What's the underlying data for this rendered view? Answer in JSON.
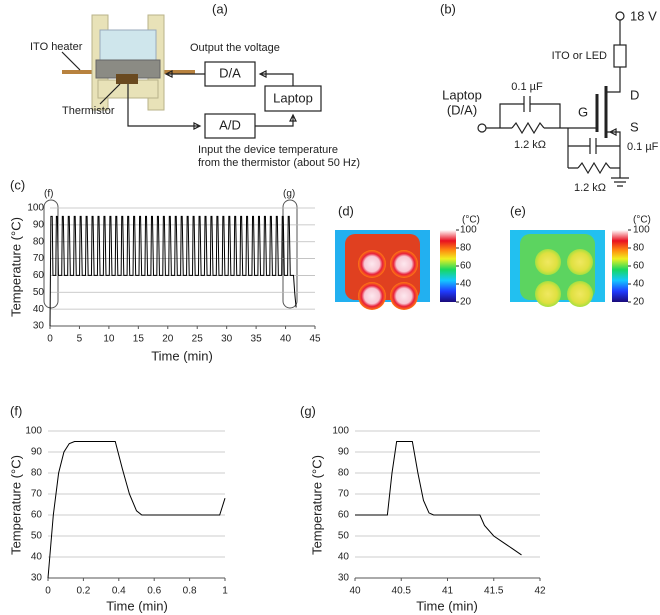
{
  "diagram_a": {
    "label": "(a)",
    "ito_heater": "ITO heater",
    "thermistor": "Thermistor",
    "output": "Output the voltage",
    "da": "D/A",
    "laptop": "Laptop",
    "ad": "A/D",
    "input_line1": "Input the device temperature",
    "input_line2": "from the thermistor (about 50 Hz)"
  },
  "circuit": {
    "label": "(b)",
    "supply": "18 V",
    "load": "ITO or LED",
    "drain": "D",
    "gate": "G",
    "source": "S",
    "input_line1": "Laptop",
    "input_line2": "(D/A)",
    "c1": "0.1 µF",
    "r1": "1.2 kΩ",
    "c2": "0.1 µF",
    "r2": "1.2 kΩ"
  },
  "thermal": [
    {
      "label": "(d)",
      "unit": "(°C)",
      "lim": [
        20,
        100
      ],
      "ticks": [
        20,
        40,
        60,
        80,
        100
      ]
    },
    {
      "label": "(e)",
      "unit": "(°C)",
      "lim": [
        20,
        100
      ],
      "ticks": [
        20,
        40,
        60,
        80,
        100
      ]
    }
  ],
  "chart_data": [
    {
      "type": "line",
      "label": "(c)",
      "xlabel": "Time (min)",
      "ylabel": "Temperature (°C)",
      "color": "#000000",
      "grid": true,
      "annotations": [
        "(f)",
        "(g)"
      ],
      "xlim": [
        0,
        45
      ],
      "xticks": [
        0,
        5,
        10,
        15,
        20,
        25,
        30,
        35,
        40,
        45
      ],
      "ylim": [
        30,
        100
      ],
      "yticks": [
        30,
        40,
        50,
        60,
        70,
        80,
        90,
        100
      ],
      "x": [
        0,
        0.15,
        0.38,
        0.5,
        0.98,
        1.08,
        1.25,
        1.43,
        1.99,
        2.09,
        2.26,
        2.44,
        3,
        3.1,
        3.27,
        3.45,
        4.01,
        4.11,
        4.28,
        4.46,
        5.02,
        5.12,
        5.29,
        5.47,
        6.03,
        6.13,
        6.3,
        6.48,
        7.04,
        7.14,
        7.31,
        7.49,
        8.05,
        8.15,
        8.32,
        8.5,
        9.06,
        9.16,
        9.33,
        9.51,
        10.07,
        10.17,
        10.34,
        10.52,
        11.07,
        11.17,
        11.34,
        11.52,
        12.08,
        12.18,
        12.35,
        12.53,
        13.09,
        13.19,
        13.36,
        13.54,
        14.1,
        14.2,
        14.37,
        14.55,
        15.11,
        15.21,
        15.38,
        15.56,
        16.12,
        16.22,
        16.39,
        16.57,
        17.13,
        17.23,
        17.4,
        17.58,
        18.14,
        18.24,
        18.41,
        18.59,
        19.15,
        19.25,
        19.42,
        19.6,
        20.16,
        20.26,
        20.43,
        20.61,
        21.17,
        21.27,
        21.44,
        21.62,
        22.18,
        22.28,
        22.45,
        22.63,
        23.19,
        23.29,
        23.46,
        23.64,
        24.2,
        24.3,
        24.47,
        24.65,
        25.21,
        25.31,
        25.48,
        25.66,
        26.22,
        26.32,
        26.49,
        26.67,
        27.23,
        27.33,
        27.5,
        27.68,
        28.24,
        28.34,
        28.51,
        28.69,
        29.25,
        29.35,
        29.52,
        29.7,
        30.26,
        30.36,
        30.53,
        30.71,
        31.26,
        31.36,
        31.53,
        31.71,
        32.27,
        32.37,
        32.54,
        32.72,
        33.28,
        33.38,
        33.55,
        33.73,
        34.29,
        34.39,
        34.56,
        34.74,
        35.3,
        35.4,
        35.57,
        35.75,
        36.31,
        36.41,
        36.58,
        36.76,
        37.32,
        37.42,
        37.59,
        37.77,
        38.33,
        38.43,
        38.6,
        38.78,
        39.34,
        39.44,
        39.61,
        39.79,
        40.35,
        40.45,
        40.62,
        40.8,
        41.35,
        41.45,
        41.55,
        41.65,
        41.8
      ],
      "values": [
        30,
        95,
        95,
        60,
        60,
        95,
        95,
        60,
        60,
        95,
        95,
        60,
        60,
        95,
        95,
        60,
        60,
        95,
        95,
        60,
        60,
        95,
        95,
        60,
        60,
        95,
        95,
        60,
        60,
        95,
        95,
        60,
        60,
        95,
        95,
        60,
        60,
        95,
        95,
        60,
        60,
        95,
        95,
        60,
        60,
        95,
        95,
        60,
        60,
        95,
        95,
        60,
        60,
        95,
        95,
        60,
        60,
        95,
        95,
        60,
        60,
        95,
        95,
        60,
        60,
        95,
        95,
        60,
        60,
        95,
        95,
        60,
        60,
        95,
        95,
        60,
        60,
        95,
        95,
        60,
        60,
        95,
        95,
        60,
        60,
        95,
        95,
        60,
        60,
        95,
        95,
        60,
        60,
        95,
        95,
        60,
        60,
        95,
        95,
        60,
        60,
        95,
        95,
        60,
        60,
        95,
        95,
        60,
        60,
        95,
        95,
        60,
        60,
        95,
        95,
        60,
        60,
        95,
        95,
        60,
        60,
        95,
        95,
        60,
        60,
        95,
        95,
        60,
        60,
        95,
        95,
        60,
        60,
        95,
        95,
        60,
        60,
        95,
        95,
        60,
        60,
        95,
        95,
        60,
        60,
        95,
        95,
        60,
        60,
        95,
        95,
        60,
        60,
        95,
        95,
        60,
        60,
        95,
        95,
        60,
        60,
        95,
        95,
        60,
        60,
        55,
        50,
        46,
        41
      ]
    },
    {
      "type": "line",
      "label": "(f)",
      "xlabel": "Time (min)",
      "ylabel": "Temperature (°C)",
      "color": "#000000",
      "grid": true,
      "xlim": [
        0,
        1
      ],
      "xticks": [
        0,
        0.2,
        0.4,
        0.6,
        0.8,
        1
      ],
      "ylim": [
        30,
        100
      ],
      "yticks": [
        30,
        40,
        50,
        60,
        70,
        80,
        90,
        100
      ],
      "x": [
        0,
        0.03,
        0.06,
        0.09,
        0.12,
        0.15,
        0.38,
        0.42,
        0.46,
        0.5,
        0.53,
        0.97,
        1
      ],
      "values": [
        30,
        60,
        80,
        90,
        94,
        95,
        95,
        82,
        70,
        62,
        60,
        60,
        68
      ]
    },
    {
      "type": "line",
      "label": "(g)",
      "xlabel": "Time (min)",
      "ylabel": "Temperature (°C)",
      "color": "#000000",
      "grid": true,
      "xlim": [
        40,
        42
      ],
      "xticks": [
        40,
        40.5,
        41,
        41.5,
        42
      ],
      "ylim": [
        30,
        100
      ],
      "yticks": [
        30,
        40,
        50,
        60,
        70,
        80,
        90,
        100
      ],
      "x": [
        40,
        40.35,
        40.4,
        40.45,
        40.62,
        40.68,
        40.74,
        40.8,
        40.85,
        41.35,
        41.4,
        41.5,
        41.6,
        41.7,
        41.8
      ],
      "values": [
        60,
        60,
        80,
        95,
        95,
        80,
        67,
        61,
        60,
        60,
        55,
        50,
        47,
        44,
        41
      ]
    }
  ]
}
